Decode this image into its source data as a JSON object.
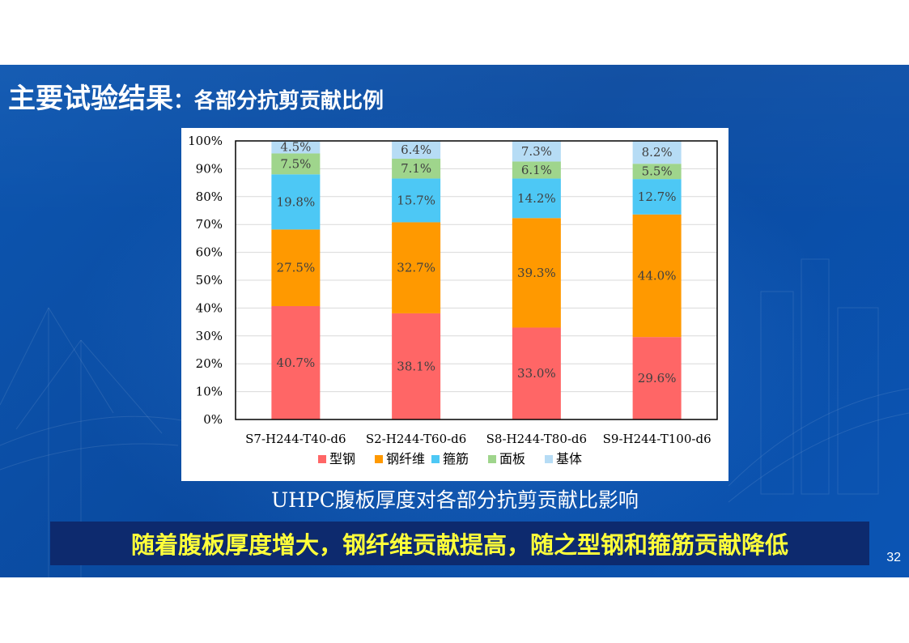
{
  "slide": {
    "title_main": "主要试验结果",
    "title_sub": "：各部分抗剪贡献比例",
    "caption": "UHPC腹板厚度对各部分抗剪贡献比影响",
    "conclusion": "随着腹板厚度增大，钢纤维贡献提高，随之型钢和箍筋贡献降低",
    "page_number": "32"
  },
  "colors": {
    "bg": "#0b4fa8",
    "banner_bg": "#0d2a6e",
    "banner_text": "#ffff3a"
  },
  "chart_data": {
    "type": "bar",
    "stacked": true,
    "percent": true,
    "categories": [
      "S7-H244-T40-d6",
      "S2-H244-T60-d6",
      "S8-H244-T80-d6",
      "S9-H244-T100-d6"
    ],
    "series": [
      {
        "name": "型钢",
        "color": "#ff6666",
        "values": [
          40.7,
          38.1,
          33.0,
          29.6
        ],
        "labels": [
          "40.7%",
          "38.1%",
          "33.0%",
          "29.6%"
        ]
      },
      {
        "name": "钢纤维",
        "color": "#ff9900",
        "values": [
          27.5,
          32.7,
          39.3,
          44.0
        ],
        "labels": [
          "27.5%",
          "32.7%",
          "39.3%",
          "44.0%"
        ]
      },
      {
        "name": "箍筋",
        "color": "#4dc8f5",
        "values": [
          19.8,
          15.7,
          14.2,
          12.7
        ],
        "labels": [
          "19.8%",
          "15.7%",
          "14.2%",
          "12.7%"
        ]
      },
      {
        "name": "面板",
        "color": "#9fd58c",
        "values": [
          7.5,
          7.1,
          6.1,
          5.5
        ],
        "labels": [
          "7.5%",
          "7.1%",
          "6.1%",
          "5.5%"
        ]
      },
      {
        "name": "基体",
        "color": "#b6dcf5",
        "values": [
          4.5,
          6.4,
          7.3,
          8.2
        ],
        "labels": [
          "4.5%",
          "6.4%",
          "7.3%",
          "8.2%"
        ]
      }
    ],
    "ylim": [
      0,
      100
    ],
    "yticks": [
      "0%",
      "10%",
      "20%",
      "30%",
      "40%",
      "50%",
      "60%",
      "70%",
      "80%",
      "90%",
      "100%"
    ],
    "grid": true,
    "legend": "bottom"
  }
}
